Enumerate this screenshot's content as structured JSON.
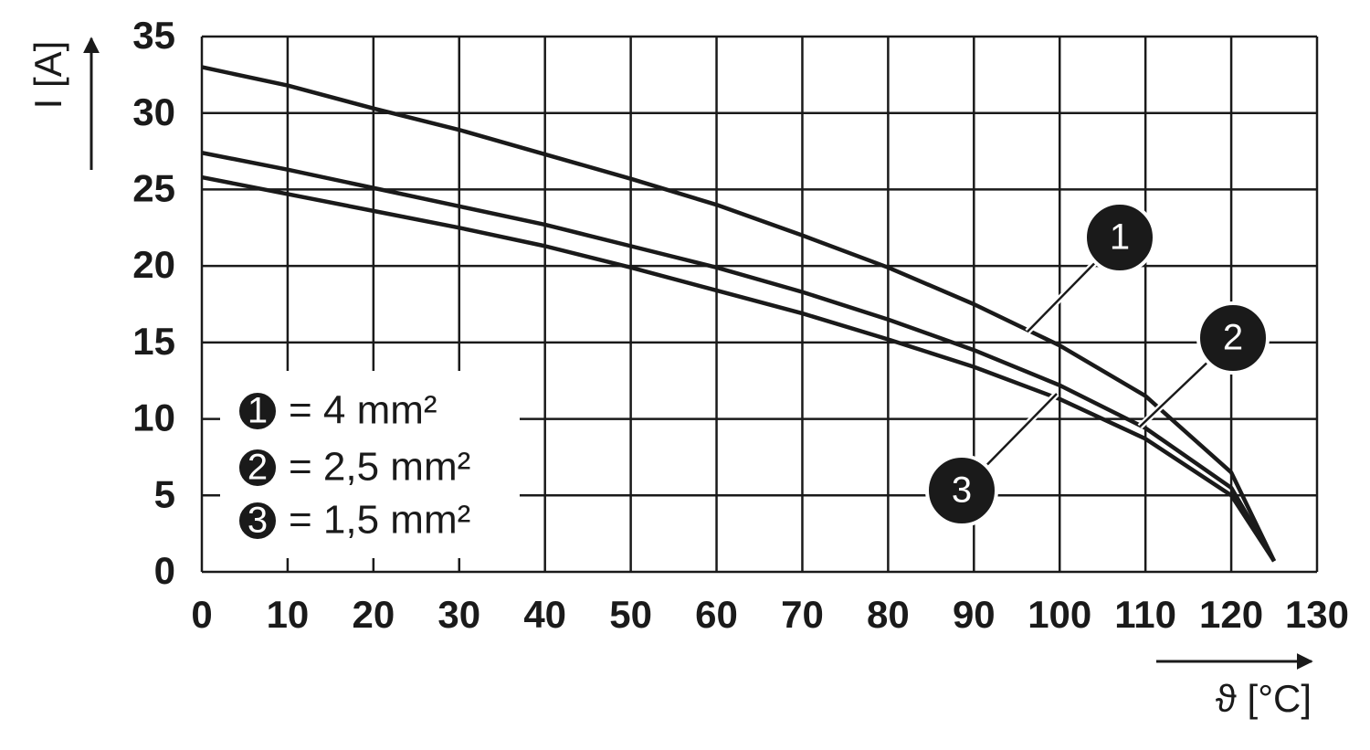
{
  "chart_data": {
    "type": "line",
    "ylabel": "I [A]",
    "xlabel": "ϑ [°C]",
    "xlim": [
      0,
      130
    ],
    "ylim": [
      0,
      35
    ],
    "xticks": [
      0,
      10,
      20,
      30,
      40,
      50,
      60,
      70,
      80,
      90,
      100,
      110,
      120,
      130
    ],
    "yticks": [
      0,
      5,
      10,
      15,
      20,
      25,
      30,
      35
    ],
    "grid": true,
    "x": [
      0,
      10,
      20,
      30,
      40,
      50,
      60,
      70,
      80,
      90,
      100,
      110,
      120,
      125
    ],
    "series": [
      {
        "label": "1",
        "name": "= 4 mm²",
        "color": "#1a1a1a",
        "values": [
          33,
          31.8,
          30.3,
          28.9,
          27.3,
          25.7,
          24,
          22,
          19.9,
          17.5,
          14.8,
          11.5,
          6.5,
          0.7
        ]
      },
      {
        "label": "2",
        "name": "= 2,5 mm²",
        "color": "#1a1a1a",
        "values": [
          27.4,
          26.3,
          25.1,
          23.9,
          22.7,
          21.3,
          19.9,
          18.3,
          16.5,
          14.5,
          12.2,
          9.4,
          5.5,
          0.7
        ]
      },
      {
        "label": "3",
        "name": "= 1,5 mm²",
        "color": "#1a1a1a",
        "values": [
          25.8,
          24.7,
          23.6,
          22.5,
          21.3,
          19.9,
          18.4,
          16.9,
          15.2,
          13.4,
          11.3,
          8.7,
          5,
          0.7
        ]
      }
    ]
  }
}
